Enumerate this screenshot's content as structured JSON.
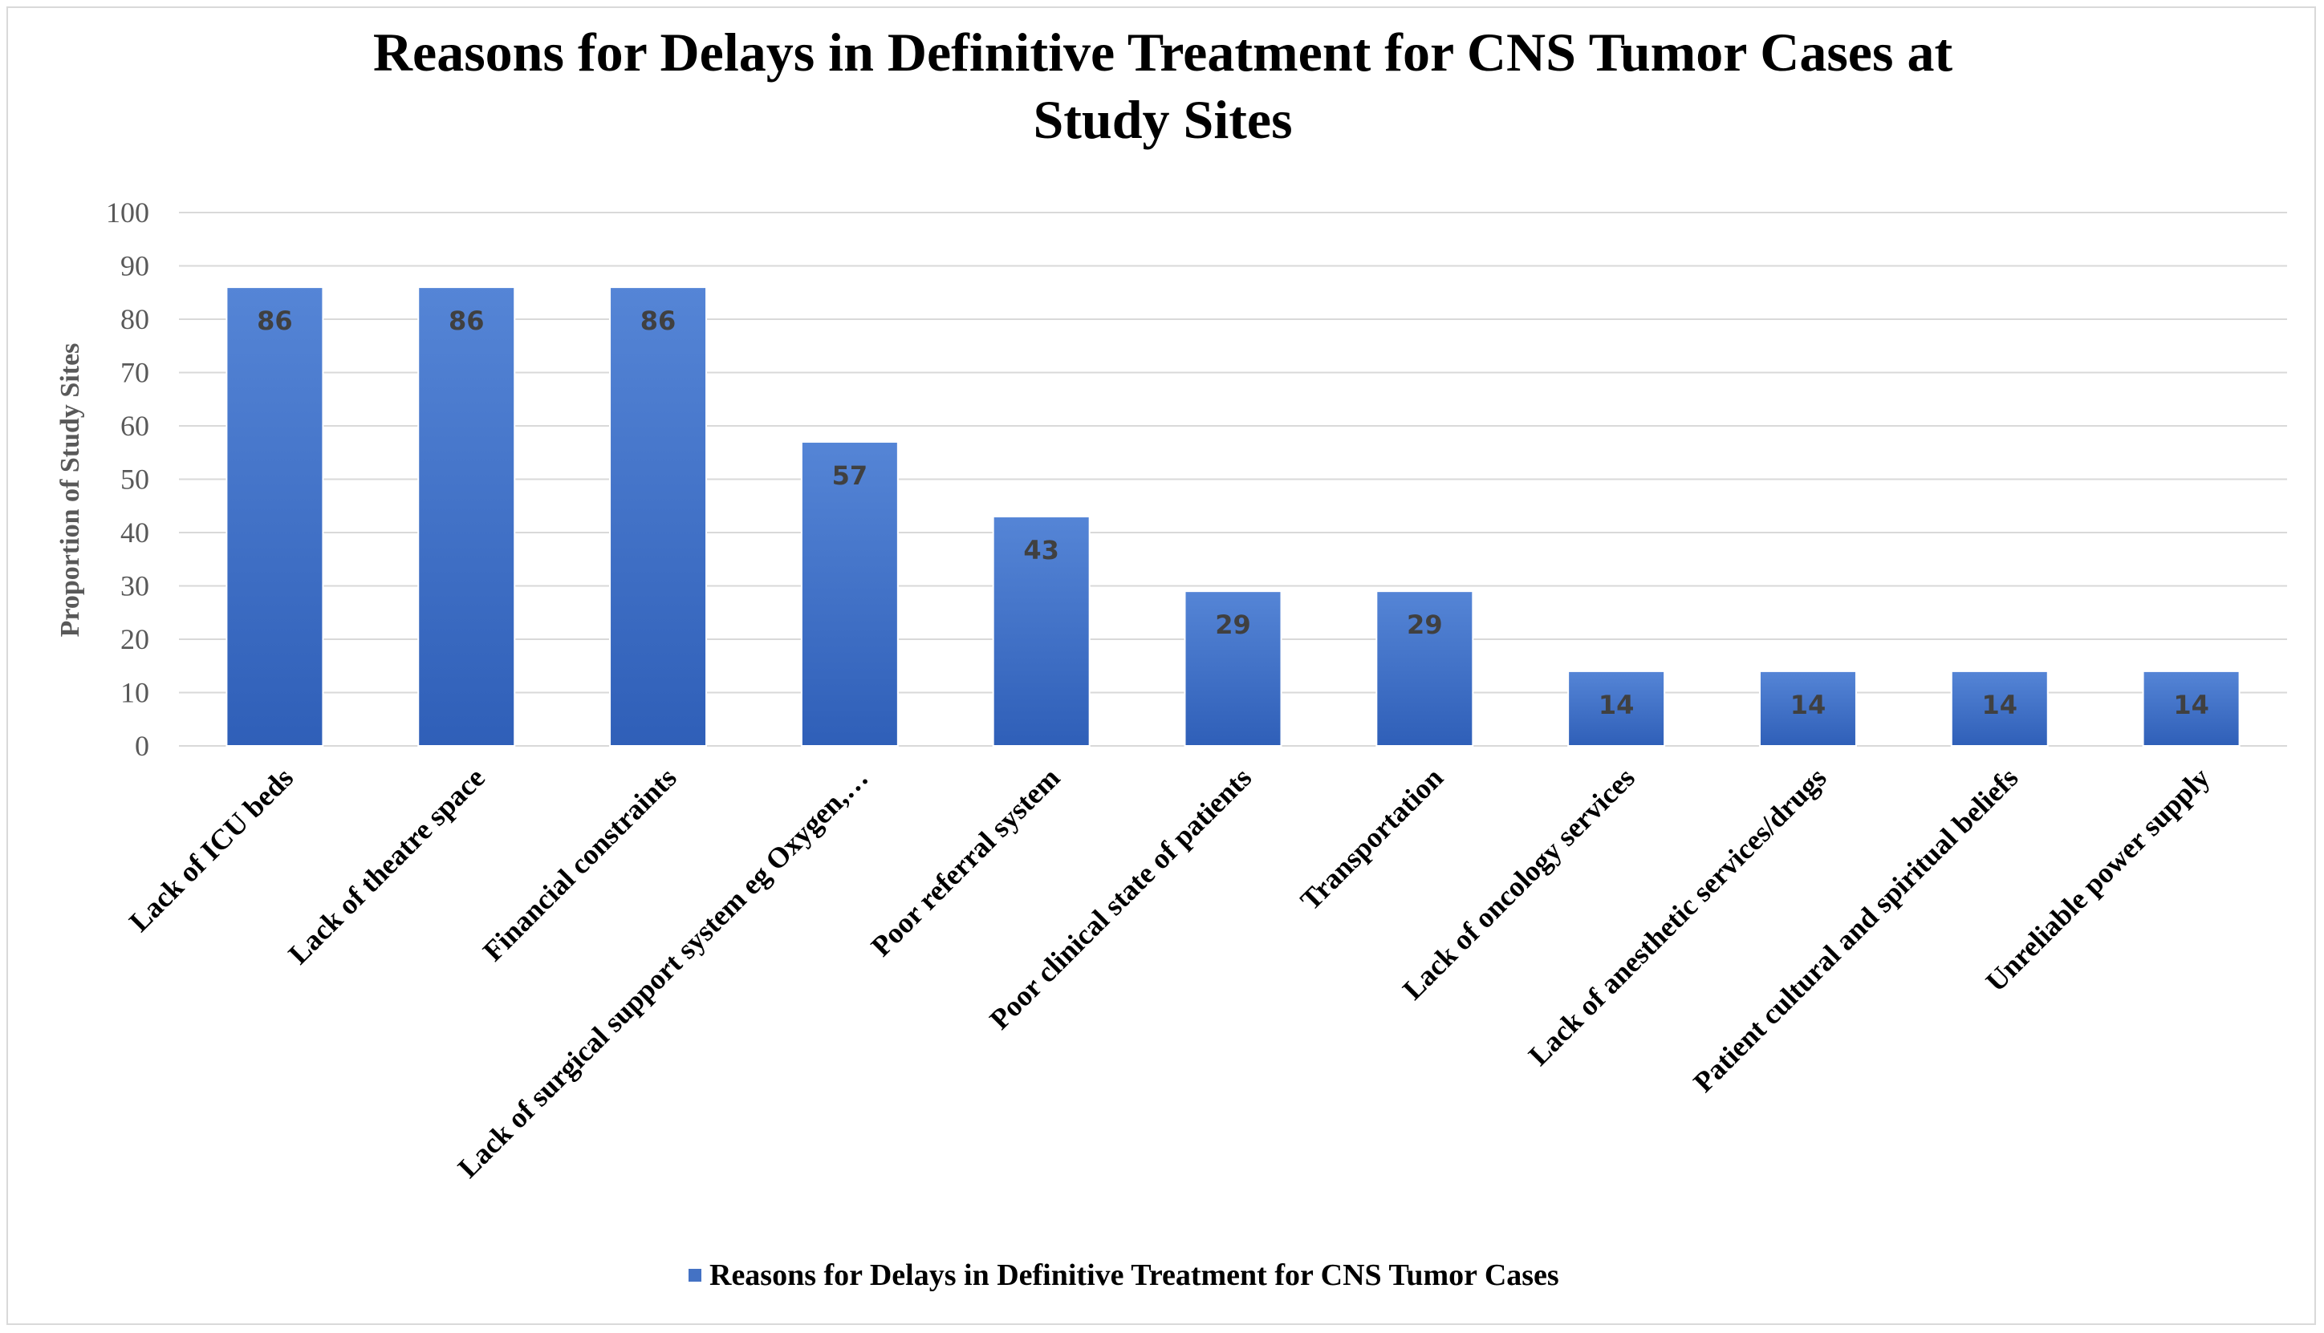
{
  "chart_data": {
    "type": "bar",
    "title": "Reasons for Delays in Definitive Treatment for CNS Tumor Cases at Study Sites",
    "title_lines": [
      "Reasons for Delays in Definitive Treatment for CNS Tumor Cases at",
      "Study Sites"
    ],
    "xlabel": "",
    "ylabel": "Proportion of Study Sites",
    "ylim": [
      0,
      100
    ],
    "yticks": [
      0,
      10,
      20,
      30,
      40,
      50,
      60,
      70,
      80,
      90,
      100
    ],
    "grid": true,
    "legend_position": "bottom",
    "categories": [
      "Lack of ICU beds",
      "Lack of theatre space",
      "Financial constraints",
      "Lack of surgical support system eg Oxygen,…",
      "Poor referral system",
      "Poor clinical state of patients",
      "Transportation",
      "Lack of oncology services",
      "Lack of anesthetic services/drugs",
      "Patient cultural and spiritual beliefs",
      "Unreliable power supply"
    ],
    "series": [
      {
        "name": "Reasons for Delays in Definitive Treatment for CNS Tumor Cases",
        "values": [
          86,
          86,
          86,
          57,
          43,
          29,
          29,
          14,
          14,
          14,
          14
        ],
        "color": "#4472c4"
      }
    ]
  },
  "colors": {
    "bar_top": "#5585d6",
    "bar_bottom": "#2f5fb8",
    "grid": "#d9d9d9",
    "axis_text": "#595959"
  }
}
